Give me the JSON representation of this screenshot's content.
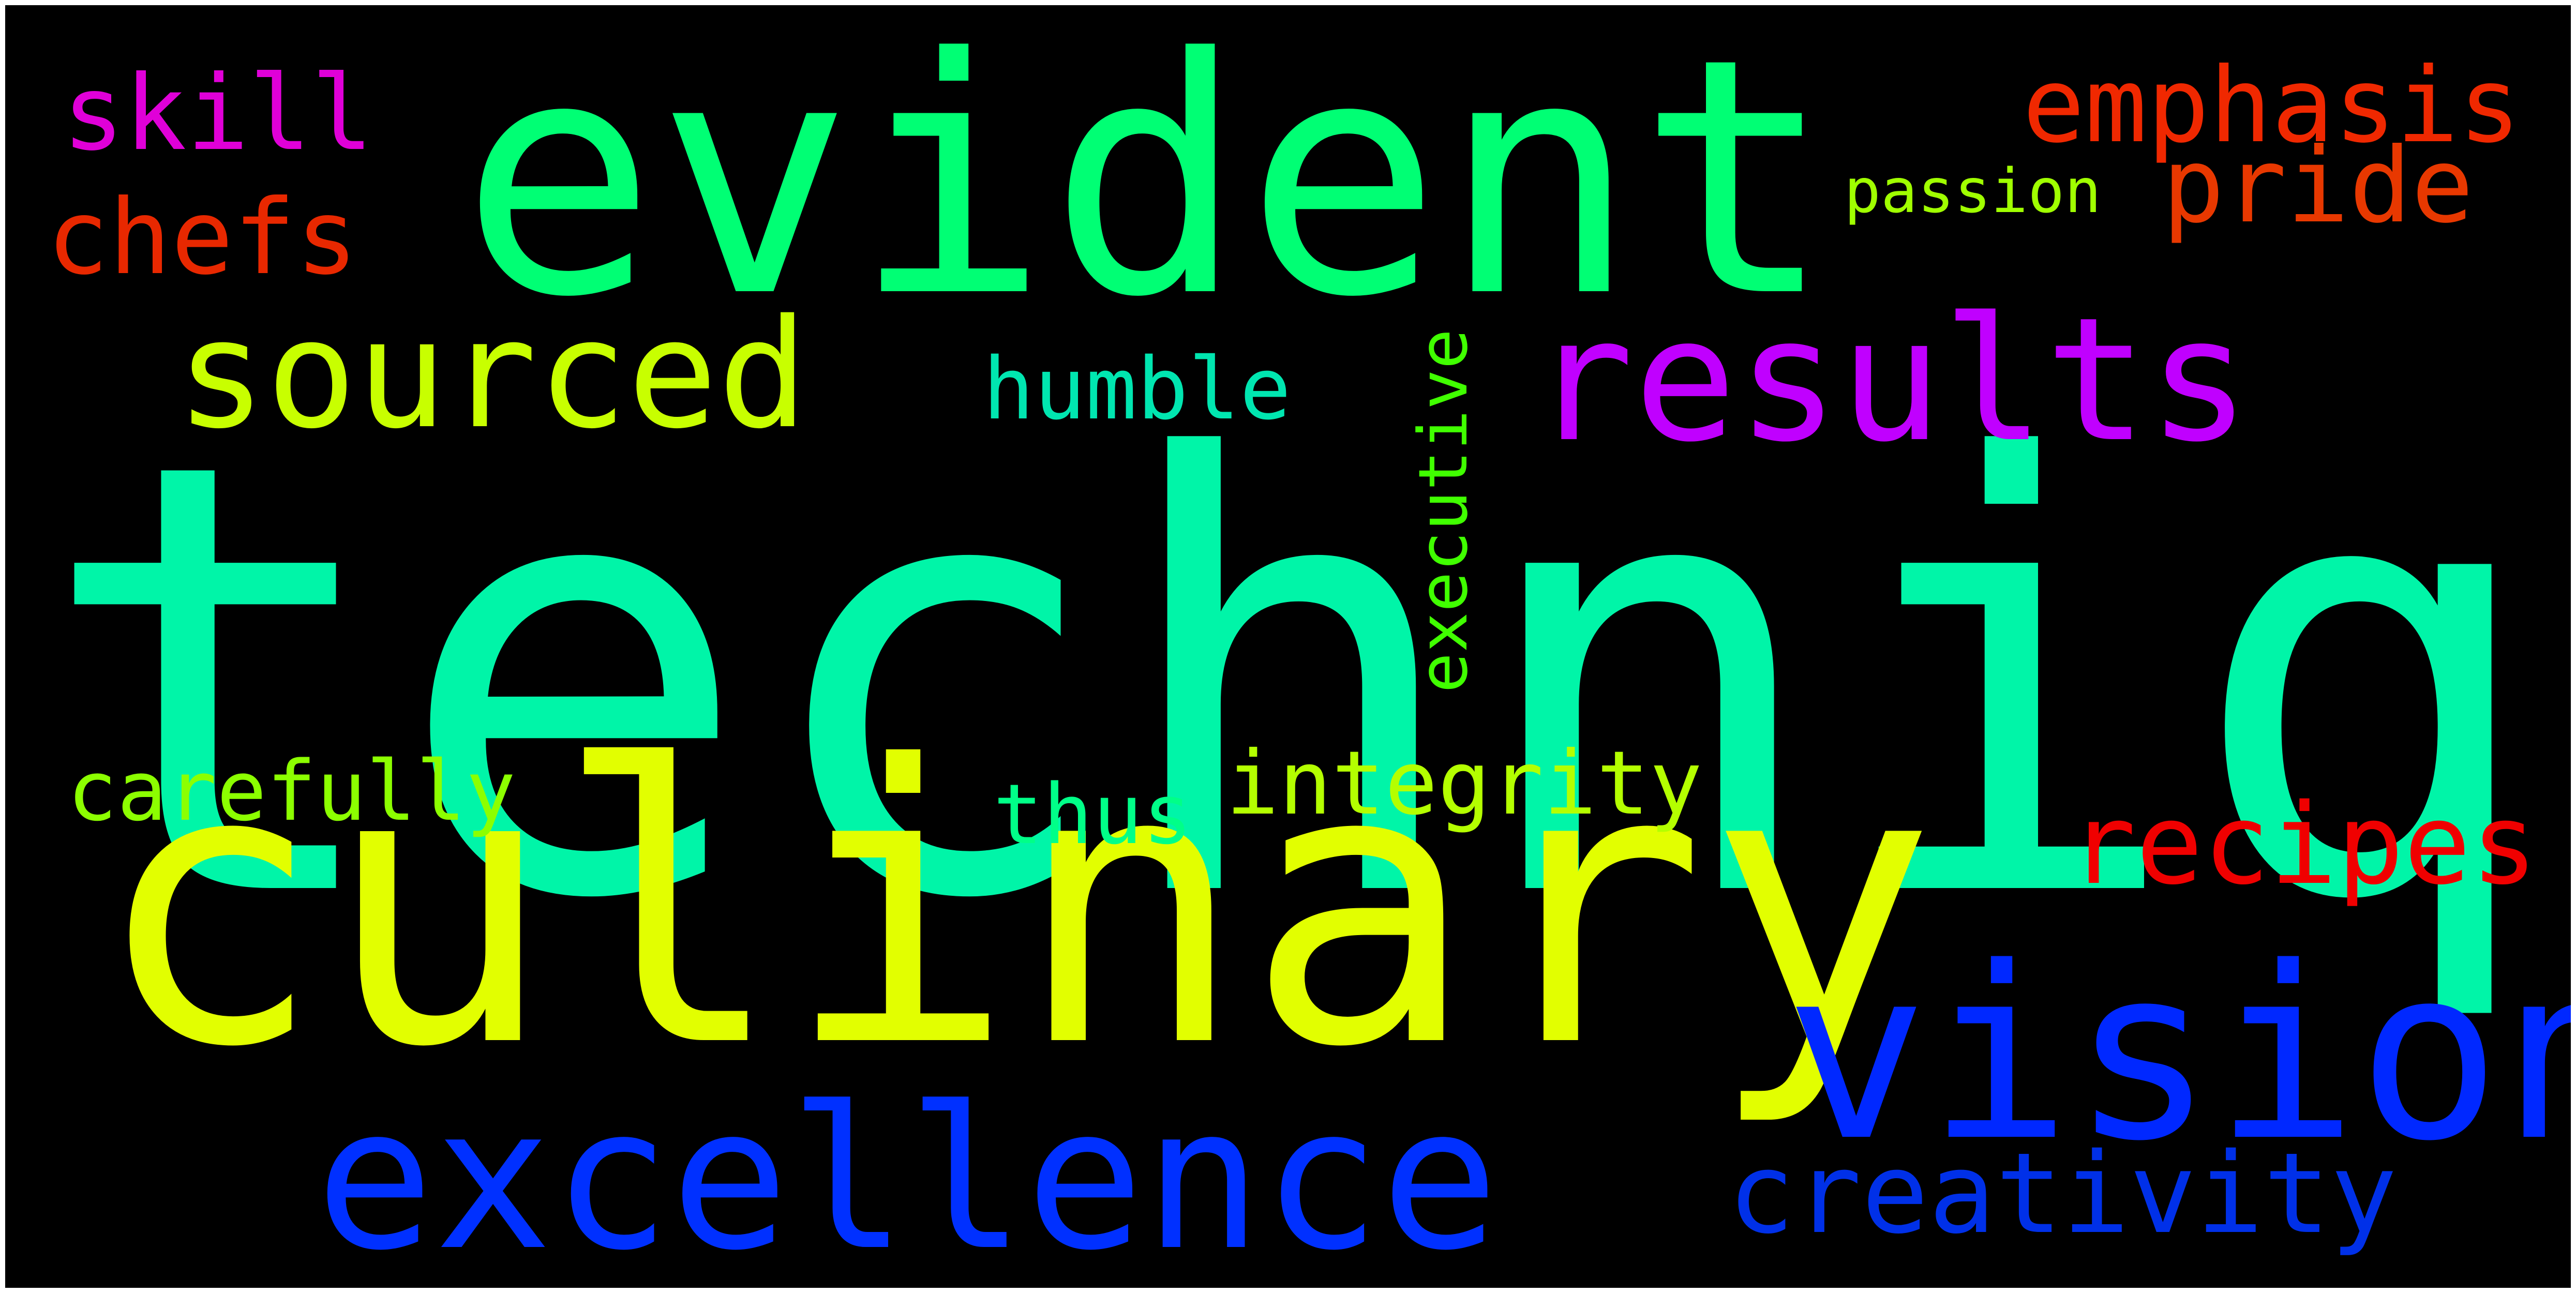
{
  "words": {
    "technique": {
      "text": "technique",
      "color": "#00f5a8"
    },
    "culinary": {
      "text": "culinary",
      "color": "#e2ff00"
    },
    "evident": {
      "text": "evident",
      "color": "#00ff74"
    },
    "results": {
      "text": "results",
      "color": "#c000ff"
    },
    "vision": {
      "text": "vision",
      "color": "#0028ff"
    },
    "excellence": {
      "text": "excellence",
      "color": "#0030ff"
    },
    "sourced": {
      "text": "sourced",
      "color": "#c8ff00"
    },
    "recipes": {
      "text": "recipes",
      "color": "#f00000"
    },
    "emphasis": {
      "text": "emphasis",
      "color": "#f02800"
    },
    "pride": {
      "text": "pride",
      "color": "#e83800"
    },
    "chefs": {
      "text": "chefs",
      "color": "#e82800"
    },
    "skill": {
      "text": "skill",
      "color": "#e000d8"
    },
    "creativity": {
      "text": "creativity",
      "color": "#0030e8"
    },
    "integrity": {
      "text": "integrity",
      "color": "#b4ff00"
    },
    "humble": {
      "text": "humble",
      "color": "#00e6b0"
    },
    "carefully": {
      "text": "carefully",
      "color": "#8cff00"
    },
    "thus": {
      "text": "thus",
      "color": "#00ff88"
    },
    "passion": {
      "text": "passion",
      "color": "#a0ff00"
    },
    "executive": {
      "text": "executive",
      "color": "#40ff00"
    }
  }
}
